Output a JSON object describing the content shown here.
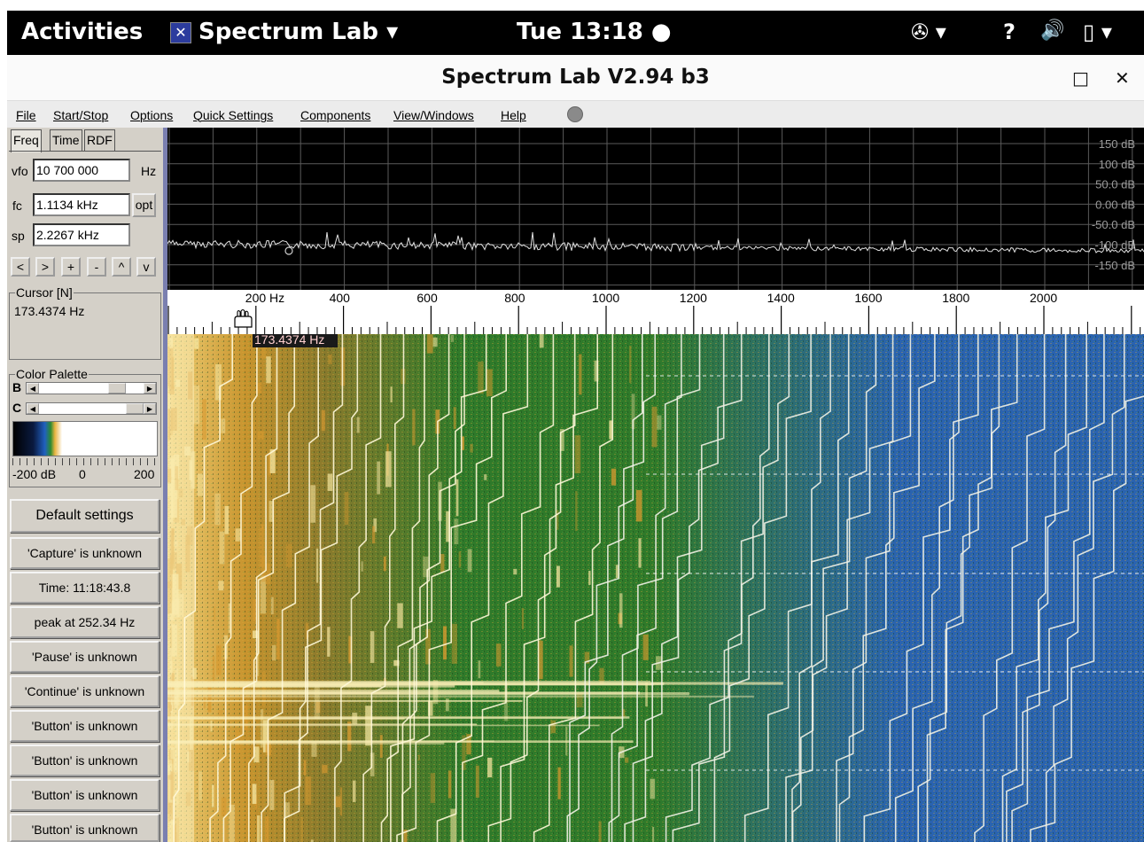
{
  "topbar": {
    "activities": "Activities",
    "app_name": "Spectrum Lab ▾",
    "app_icon_glyph": "✕",
    "clock": "Tue 13:18 ●",
    "tray_accessibility": "✇ ▾",
    "tray_network": "?",
    "tray_volume": "🔊",
    "tray_battery": "▯ ▾"
  },
  "window": {
    "title": "Spectrum Lab V2.94 b3",
    "maximize": "□",
    "close": "✕"
  },
  "menu": {
    "file": "File",
    "startstop": "Start/Stop",
    "options": "Options",
    "quick": "Quick Settings",
    "components": "Components",
    "view": "View/Windows",
    "help": "Help"
  },
  "left": {
    "tabs": [
      "Freq",
      "Time",
      "RDF"
    ],
    "vfo_label": "vfo",
    "vfo_value": "10 700 000",
    "vfo_unit": "Hz",
    "fc_label": "fc",
    "fc_value": "1.1134 kHz",
    "opt": "opt",
    "sp_label": "sp",
    "sp_value": "2.2267 kHz",
    "nav": [
      "<",
      ">",
      "+",
      "-",
      "^",
      "v"
    ],
    "cursor_title": "Cursor [N]",
    "cursor_value": "173.4374 Hz",
    "palette_title": "Color Palette",
    "b_label": "B",
    "c_label": "C",
    "palette_min": "-200 dB",
    "palette_mid": "0",
    "palette_max": "200",
    "buttons": [
      "Default settings",
      "'Capture' is unknown",
      "Time:  11:18:43.8",
      "peak at 252.34 Hz",
      "'Pause' is unknown",
      "'Continue' is unknown",
      "'Button' is unknown",
      "'Button' is unknown",
      "'Button' is unknown",
      "'Button' is unknown"
    ]
  },
  "spectrum": {
    "db_labels": [
      "150 dB",
      "100 dB",
      "50.0 dB",
      "0.00 dB",
      "-50.0 dB",
      "-100 dB",
      "-150 dB"
    ]
  },
  "scale": {
    "labels": [
      "200 Hz",
      "400",
      "600",
      "800",
      "1000",
      "1200",
      "1400",
      "1600",
      "1800",
      "2000"
    ],
    "cursor_readout": "173.4374 Hz"
  },
  "colors": {
    "waterfall_yellow": "#e8b440",
    "waterfall_green": "#2f7a2a",
    "waterfall_blue": "#2a63b0"
  }
}
